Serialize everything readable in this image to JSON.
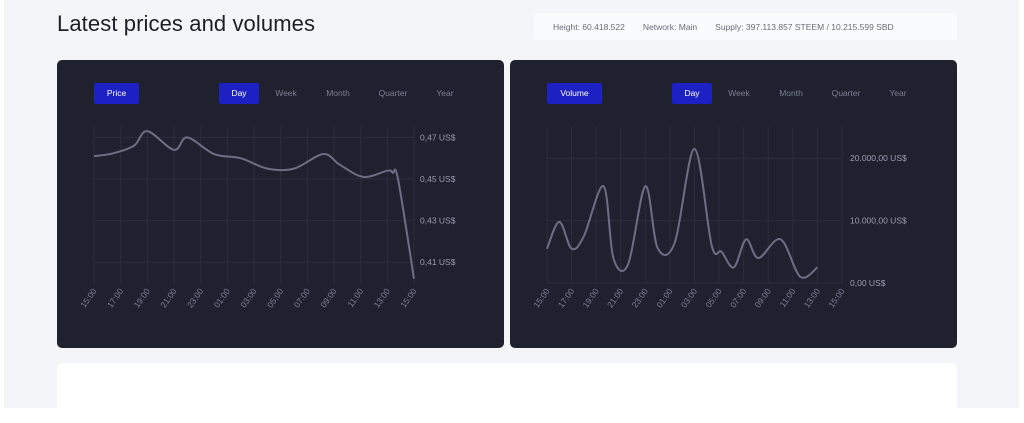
{
  "header": {
    "title": "Latest prices and volumes",
    "height": "Height: 60.418.522",
    "network": "Network: Main",
    "supply": "Supply: 397.113.857 STEEM / 10.215.599 SBD"
  },
  "price_panel": {
    "metric_label": "Price",
    "ranges": [
      "Day",
      "Week",
      "Month",
      "Quarter",
      "Year"
    ],
    "active_range": "Day"
  },
  "volume_panel": {
    "metric_label": "Volume",
    "ranges": [
      "Day",
      "Week",
      "Month",
      "Quarter",
      "Year"
    ],
    "active_range": "Day"
  },
  "colors": {
    "panel_bg": "#1f212e",
    "line": "#6c6f84",
    "active_button": "#1d21c4",
    "grid": "#2a2d3b"
  },
  "chart_data": [
    {
      "type": "line",
      "title": "Price",
      "x": [
        "15:00",
        "17:00",
        "19:00",
        "21:00",
        "23:00",
        "01:00",
        "03:00",
        "05:00",
        "07:00",
        "09:00",
        "11:00",
        "13:00",
        "15:00"
      ],
      "yticks": [
        "0,41 US$",
        "0,43 US$",
        "0,45 US$",
        "0,47 US$"
      ],
      "ylim": [
        0.4,
        0.475
      ],
      "grid": true,
      "series": [
        {
          "values": [
            [
              0,
              0.461
            ],
            [
              0.7,
              0.4623
            ],
            [
              1.5,
              0.466
            ],
            [
              2,
              0.473
            ],
            [
              3,
              0.464
            ],
            [
              3.5,
              0.47
            ],
            [
              4.5,
              0.462
            ],
            [
              5.5,
              0.46
            ],
            [
              6.5,
              0.455
            ],
            [
              7.5,
              0.455
            ],
            [
              8.6,
              0.462
            ],
            [
              9.2,
              0.457
            ],
            [
              10.1,
              0.451
            ],
            [
              11,
              0.454
            ],
            [
              11.2,
              0.453
            ],
            [
              11.4,
              0.45
            ],
            [
              12,
              0.402
            ]
          ]
        }
      ]
    },
    {
      "type": "line",
      "title": "Volume",
      "x": [
        "15:00",
        "17:00",
        "19:00",
        "21:00",
        "23:00",
        "01:00",
        "03:00",
        "05:00",
        "07:00",
        "09:00",
        "11:00",
        "13:00",
        "15:00"
      ],
      "yticks": [
        "0,00 US$",
        "10.000,00 US$",
        "20.000,00 US$"
      ],
      "ylim": [
        0,
        25000
      ],
      "grid": true,
      "series": [
        {
          "values": [
            [
              0,
              5500
            ],
            [
              0.5,
              9800
            ],
            [
              1,
              5500
            ],
            [
              1.5,
              7500
            ],
            [
              2.3,
              15500
            ],
            [
              2.7,
              4000
            ],
            [
              3.3,
              3000
            ],
            [
              4,
              15500
            ],
            [
              4.5,
              5600
            ],
            [
              5.2,
              6500
            ],
            [
              6,
              21500
            ],
            [
              6.7,
              6000
            ],
            [
              7.1,
              5000
            ],
            [
              7.6,
              2500
            ],
            [
              8.1,
              7000
            ],
            [
              8.6,
              4000
            ],
            [
              9.5,
              7000
            ],
            [
              10.3,
              1000
            ],
            [
              11,
              2500
            ]
          ]
        }
      ]
    }
  ]
}
